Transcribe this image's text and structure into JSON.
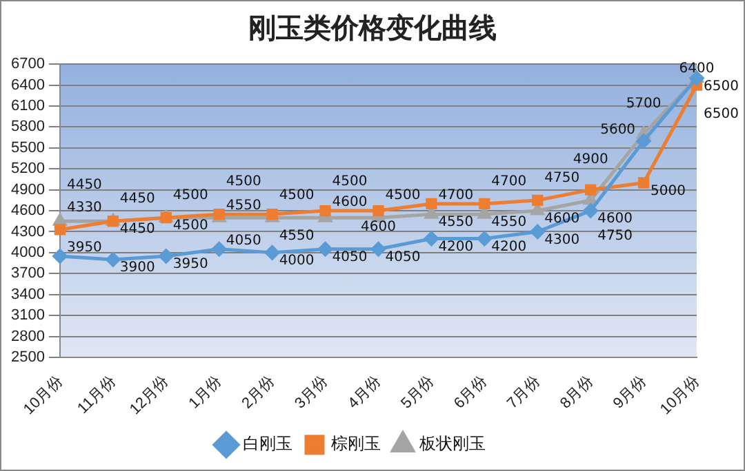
{
  "chart_data": {
    "type": "line",
    "title": "刚玉类价格变化曲线",
    "categories": [
      "10月份",
      "11月份",
      "12月份",
      "1月份",
      "2月份",
      "3月份",
      "4月份",
      "5月份",
      "6月份",
      "7月份",
      "8月份",
      "9月份",
      "10月份"
    ],
    "series": [
      {
        "name": "白刚玉",
        "color": "#5b9bd5",
        "marker": "diamond",
        "values": [
          3950,
          3900,
          3950,
          4050,
          4000,
          4050,
          4050,
          4200,
          4200,
          4300,
          4600,
          5600,
          6500
        ]
      },
      {
        "name": "棕刚玉",
        "color": "#ed7d31",
        "marker": "square",
        "values": [
          4330,
          4450,
          4500,
          4550,
          4550,
          4600,
          4600,
          4700,
          4700,
          4750,
          4900,
          5000,
          6400
        ]
      },
      {
        "name": "板状刚玉",
        "color": "#a5a5a5",
        "marker": "triangle",
        "values": [
          4450,
          4450,
          4500,
          4500,
          4500,
          4500,
          4500,
          4550,
          4550,
          4600,
          4750,
          5700,
          6500
        ]
      }
    ],
    "ylim": [
      2500,
      6700
    ],
    "yticks": [
      2500,
      2800,
      3100,
      3400,
      3700,
      4000,
      4300,
      4600,
      4900,
      5200,
      5500,
      5800,
      6100,
      6400,
      6700
    ],
    "grid": "y",
    "legend": "bottom",
    "data_labels": true
  }
}
